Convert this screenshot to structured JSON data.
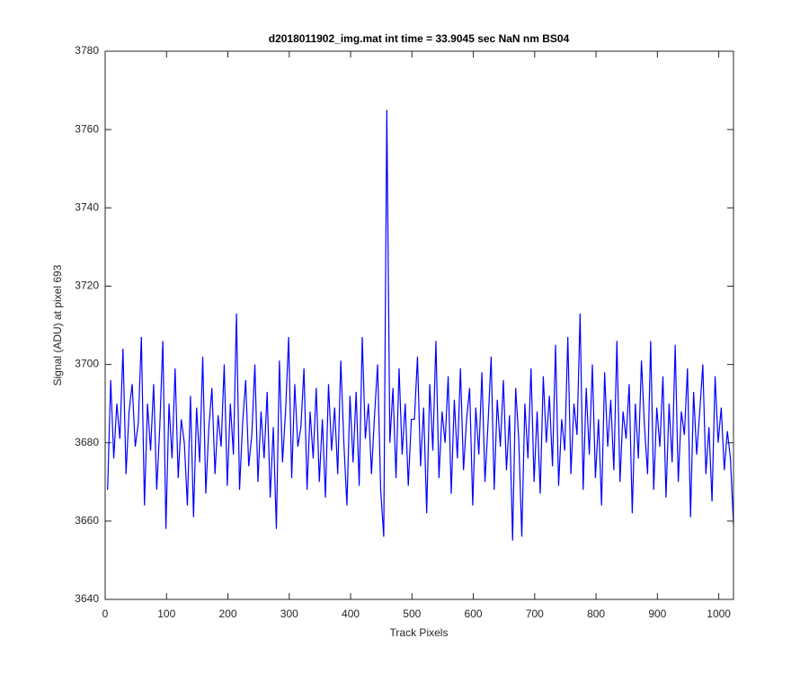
{
  "chart_data": {
    "type": "line",
    "title": "d2018011902_img.mat int time = 33.9045 sec  NaN nm BS04",
    "x_label": "Track Pixels",
    "y_label": "Signal (ADU) at pixel 693",
    "xlim": [
      0,
      1024
    ],
    "ylim": [
      3640,
      3780
    ],
    "xticks": [
      0,
      100,
      200,
      300,
      400,
      500,
      600,
      700,
      800,
      900,
      1000
    ],
    "yticks": [
      3640,
      3660,
      3680,
      3700,
      3720,
      3740,
      3760,
      3780
    ],
    "grid": false,
    "x": [
      4,
      9,
      14,
      19,
      24,
      29,
      34,
      39,
      44,
      49,
      54,
      59,
      64,
      69,
      74,
      79,
      84,
      89,
      94,
      99,
      104,
      109,
      114,
      119,
      124,
      129,
      134,
      139,
      144,
      149,
      154,
      159,
      164,
      169,
      174,
      179,
      184,
      189,
      194,
      199,
      204,
      209,
      214,
      219,
      224,
      229,
      234,
      239,
      244,
      249,
      254,
      259,
      264,
      269,
      274,
      279,
      284,
      289,
      294,
      299,
      304,
      309,
      314,
      319,
      324,
      329,
      334,
      339,
      344,
      349,
      354,
      359,
      364,
      369,
      374,
      379,
      384,
      389,
      394,
      399,
      404,
      409,
      414,
      419,
      424,
      429,
      434,
      439,
      444,
      449,
      454,
      459,
      464,
      469,
      474,
      479,
      484,
      489,
      494,
      499,
      504,
      509,
      514,
      519,
      524,
      529,
      534,
      539,
      544,
      549,
      554,
      559,
      564,
      569,
      574,
      579,
      584,
      589,
      594,
      599,
      604,
      609,
      614,
      619,
      624,
      629,
      634,
      639,
      644,
      649,
      654,
      659,
      664,
      669,
      674,
      679,
      684,
      689,
      694,
      699,
      704,
      709,
      714,
      719,
      724,
      729,
      734,
      739,
      744,
      749,
      754,
      759,
      764,
      769,
      774,
      779,
      784,
      789,
      794,
      799,
      804,
      809,
      814,
      819,
      824,
      829,
      834,
      839,
      844,
      849,
      854,
      859,
      864,
      869,
      874,
      879,
      884,
      889,
      894,
      899,
      904,
      909,
      914,
      919,
      924,
      929,
      934,
      939,
      944,
      949,
      954,
      959,
      964,
      969,
      974,
      979,
      984,
      989,
      994,
      999,
      1004,
      1009,
      1014,
      1019,
      1024
    ],
    "series": [
      {
        "name": "signal",
        "color": "#0000ff",
        "values": [
          3668,
          3696,
          3676,
          3690,
          3681,
          3704,
          3672,
          3688,
          3695,
          3679,
          3685,
          3707,
          3664,
          3690,
          3678,
          3695,
          3668,
          3684,
          3706,
          3658,
          3690,
          3676,
          3699,
          3671,
          3686,
          3680,
          3664,
          3692,
          3661,
          3689,
          3675,
          3702,
          3667,
          3684,
          3694,
          3672,
          3687,
          3679,
          3700,
          3669,
          3690,
          3677,
          3713,
          3668,
          3685,
          3696,
          3674,
          3682,
          3700,
          3670,
          3688,
          3676,
          3693,
          3666,
          3684,
          3658,
          3701,
          3675,
          3688,
          3707,
          3671,
          3695,
          3679,
          3684,
          3699,
          3668,
          3688,
          3676,
          3694,
          3670,
          3686,
          3666,
          3695,
          3678,
          3689,
          3672,
          3701,
          3680,
          3664,
          3692,
          3675,
          3693,
          3669,
          3707,
          3681,
          3690,
          3672,
          3687,
          3700,
          3668,
          3656,
          3765,
          3680,
          3694,
          3671,
          3699,
          3677,
          3690,
          3669,
          3686,
          3686,
          3702,
          3674,
          3689,
          3662,
          3695,
          3678,
          3706,
          3671,
          3688,
          3680,
          3697,
          3667,
          3691,
          3676,
          3699,
          3673,
          3686,
          3694,
          3664,
          3689,
          3677,
          3698,
          3670,
          3685,
          3702,
          3668,
          3691,
          3679,
          3696,
          3673,
          3687,
          3655,
          3694,
          3681,
          3656,
          3690,
          3676,
          3699,
          3670,
          3688,
          3667,
          3697,
          3680,
          3692,
          3674,
          3705,
          3669,
          3686,
          3678,
          3707,
          3672,
          3690,
          3682,
          3713,
          3668,
          3694,
          3677,
          3700,
          3671,
          3686,
          3664,
          3698,
          3679,
          3691,
          3673,
          3706,
          3670,
          3688,
          3681,
          3695,
          3662,
          3690,
          3676,
          3701,
          3684,
          3672,
          3706,
          3668,
          3689,
          3679,
          3697,
          3666,
          3690,
          3675,
          3705,
          3670,
          3688,
          3682,
          3699,
          3661,
          3693,
          3677,
          3688,
          3700,
          3672,
          3684,
          3665,
          3697,
          3680,
          3689,
          3673,
          3683,
          3676,
          3659
        ]
      }
    ]
  }
}
